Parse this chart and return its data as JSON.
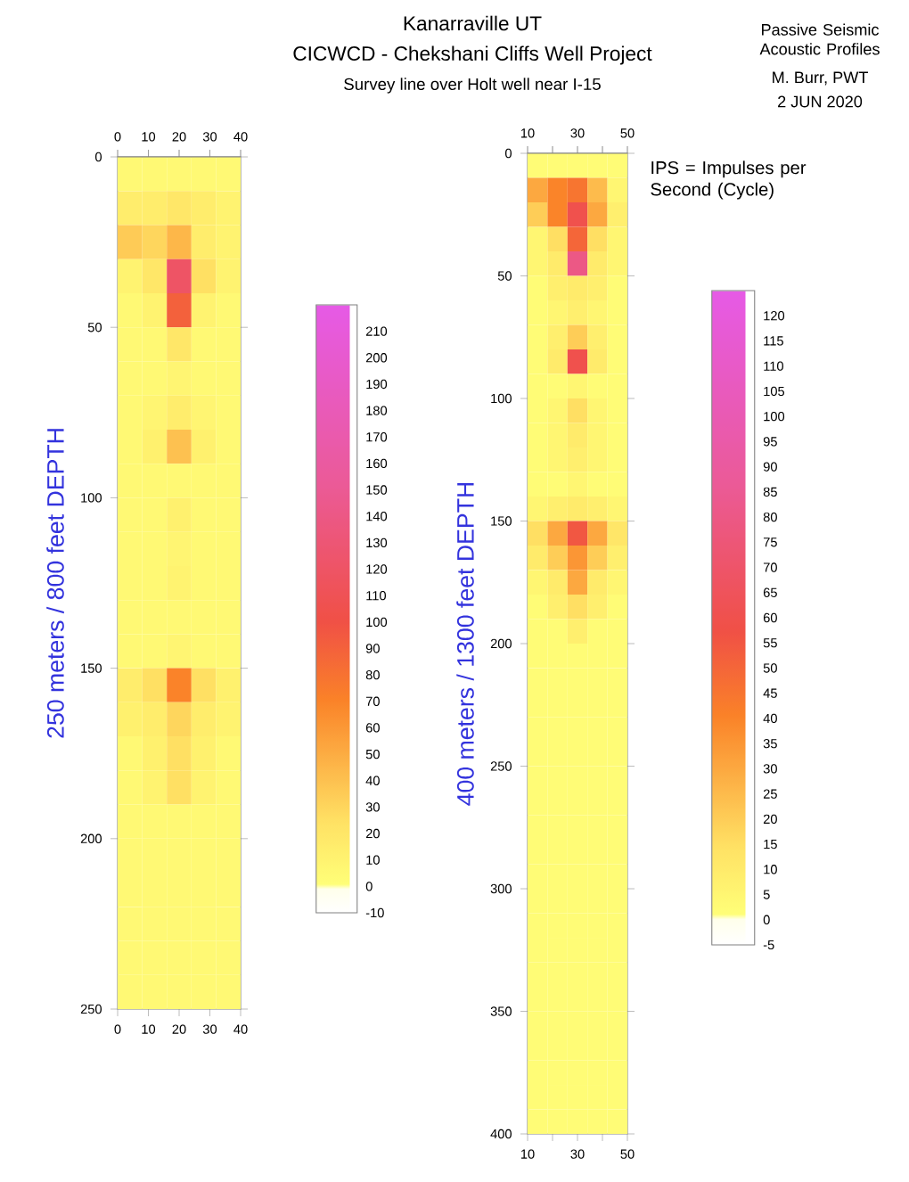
{
  "chart_data": [
    {
      "type": "heatmap",
      "ylabel": "250 meters / 800 feet DEPTH",
      "cells": [
        [
          5,
          5,
          5,
          5,
          5
        ],
        [
          15,
          15,
          20,
          15,
          10
        ],
        [
          35,
          30,
          45,
          15,
          10
        ],
        [
          10,
          20,
          120,
          25,
          10
        ],
        [
          5,
          10,
          90,
          10,
          5
        ],
        [
          5,
          5,
          20,
          5,
          5
        ],
        [
          5,
          5,
          8,
          5,
          5
        ],
        [
          5,
          8,
          15,
          8,
          5
        ],
        [
          5,
          12,
          40,
          12,
          5
        ],
        [
          5,
          5,
          5,
          5,
          5
        ],
        [
          5,
          5,
          12,
          5,
          5
        ],
        [
          5,
          5,
          8,
          5,
          5
        ],
        [
          5,
          5,
          10,
          5,
          5
        ],
        [
          5,
          5,
          5,
          5,
          5
        ],
        [
          5,
          5,
          8,
          5,
          5
        ],
        [
          15,
          25,
          70,
          25,
          12
        ],
        [
          12,
          15,
          30,
          15,
          10
        ],
        [
          5,
          12,
          25,
          12,
          5
        ],
        [
          5,
          10,
          25,
          10,
          5
        ],
        [
          5,
          5,
          5,
          5,
          5
        ],
        [
          5,
          5,
          5,
          5,
          5
        ],
        [
          5,
          5,
          5,
          5,
          5
        ],
        [
          5,
          5,
          5,
          5,
          5
        ],
        [
          5,
          5,
          5,
          5,
          5
        ],
        [
          5,
          5,
          5,
          5,
          5
        ]
      ],
      "xlim": [
        0,
        40
      ],
      "xticks": [
        0,
        10,
        20,
        30,
        40
      ],
      "x2lim": [
        0,
        40
      ],
      "x2ticks": [
        0,
        10,
        20,
        30,
        40
      ],
      "ylim": [
        250,
        0
      ],
      "yticks": [
        0,
        50,
        100,
        150,
        200,
        250
      ],
      "clim": [
        -10,
        220
      ],
      "cticks": [
        -10,
        0,
        10,
        20,
        30,
        40,
        50,
        60,
        70,
        80,
        90,
        100,
        110,
        120,
        130,
        140,
        150,
        160,
        170,
        180,
        190,
        200,
        210
      ]
    },
    {
      "type": "heatmap",
      "title": "Kanarraville UT",
      "subtitle": "CICWCD - Chekshani Cliffs Well Project",
      "annotations": [
        "Survey line over Holt well near I-15",
        "Passive Seismic Acoustic Profiles",
        "M. Burr, PWT",
        "2 JUN 2020",
        "IPS = Impulses per Second (Cycle)"
      ],
      "ylabel": "400 meters / 1300 feet DEPTH",
      "cells": [
        [
          2,
          2,
          2,
          2,
          2
        ],
        [
          30,
          40,
          45,
          25,
          5
        ],
        [
          20,
          40,
          60,
          30,
          8
        ],
        [
          5,
          15,
          50,
          15,
          5
        ],
        [
          5,
          10,
          80,
          10,
          5
        ],
        [
          2,
          8,
          10,
          8,
          2
        ],
        [
          2,
          5,
          8,
          5,
          2
        ],
        [
          2,
          8,
          20,
          8,
          2
        ],
        [
          2,
          10,
          60,
          10,
          2
        ],
        [
          2,
          2,
          5,
          2,
          2
        ],
        [
          2,
          5,
          15,
          5,
          2
        ],
        [
          2,
          5,
          10,
          5,
          2
        ],
        [
          2,
          5,
          8,
          5,
          2
        ],
        [
          2,
          2,
          5,
          2,
          2
        ],
        [
          5,
          8,
          10,
          8,
          5
        ],
        [
          15,
          30,
          55,
          30,
          12
        ],
        [
          10,
          20,
          35,
          20,
          8
        ],
        [
          5,
          10,
          30,
          10,
          5
        ],
        [
          2,
          8,
          15,
          8,
          2
        ],
        [
          2,
          2,
          8,
          2,
          2
        ],
        [
          2,
          2,
          2,
          2,
          2
        ],
        [
          2,
          2,
          2,
          2,
          2
        ],
        [
          2,
          2,
          2,
          2,
          2
        ],
        [
          2,
          2,
          2,
          2,
          2
        ],
        [
          2,
          2,
          2,
          2,
          2
        ],
        [
          2,
          2,
          2,
          2,
          2
        ],
        [
          2,
          2,
          2,
          2,
          2
        ],
        [
          2,
          2,
          2,
          2,
          2
        ],
        [
          2,
          2,
          2,
          2,
          2
        ],
        [
          2,
          2,
          2,
          2,
          2
        ],
        [
          2,
          2,
          2,
          2,
          2
        ],
        [
          2,
          2,
          2,
          2,
          2
        ],
        [
          2,
          2,
          2,
          2,
          2
        ],
        [
          2,
          2,
          2,
          2,
          2
        ],
        [
          2,
          2,
          2,
          2,
          2
        ],
        [
          2,
          2,
          2,
          2,
          2
        ],
        [
          2,
          2,
          2,
          2,
          2
        ],
        [
          2,
          2,
          2,
          2,
          2
        ],
        [
          2,
          2,
          2,
          2,
          2
        ],
        [
          2,
          2,
          2,
          2,
          2
        ]
      ],
      "xlim": [
        10,
        50
      ],
      "xticks": [
        10,
        {
          "value": 20,
          "label": null
        },
        30,
        {
          "value": 40,
          "label": null
        },
        50
      ],
      "x2lim": [
        10,
        50
      ],
      "x2ticks": [
        10,
        {
          "value": 20,
          "label": null
        },
        30,
        {
          "value": 40,
          "label": null
        },
        50
      ],
      "ylim": [
        400,
        0
      ],
      "yticks": [
        0,
        50,
        100,
        150,
        200,
        250,
        300,
        350,
        400
      ],
      "clim": [
        -5,
        125
      ],
      "cticks": [
        -5,
        0,
        5,
        10,
        15,
        20,
        25,
        30,
        35,
        40,
        45,
        50,
        55,
        60,
        65,
        70,
        75,
        80,
        85,
        90,
        95,
        100,
        105,
        110,
        115,
        120
      ]
    }
  ]
}
